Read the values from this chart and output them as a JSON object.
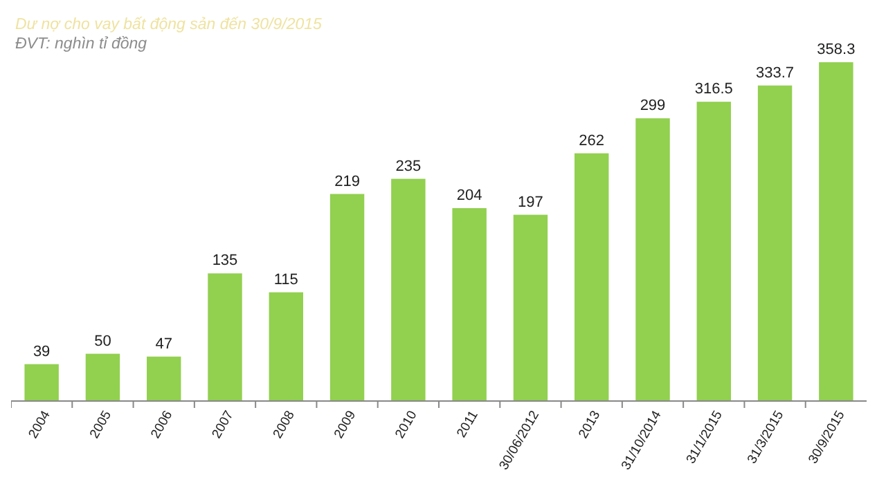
{
  "chart_data": {
    "type": "bar",
    "title": "Dư nợ cho vay bất động sản đến 30/9/2015",
    "subtitle": "ĐVT: nghìn tỉ đồng",
    "categories": [
      "2004",
      "2005",
      "2006",
      "2007",
      "2008",
      "2009",
      "2010",
      "2011",
      "30/06/2012",
      "2013",
      "31/10/2014",
      "31/1/2015",
      "31/3/2015",
      "30/9/2015"
    ],
    "values": [
      39,
      50,
      47,
      135,
      115,
      219,
      235,
      204,
      197,
      262,
      299,
      316.5,
      333.7,
      358.3
    ],
    "color": "#92d050",
    "data_labels": true
  }
}
